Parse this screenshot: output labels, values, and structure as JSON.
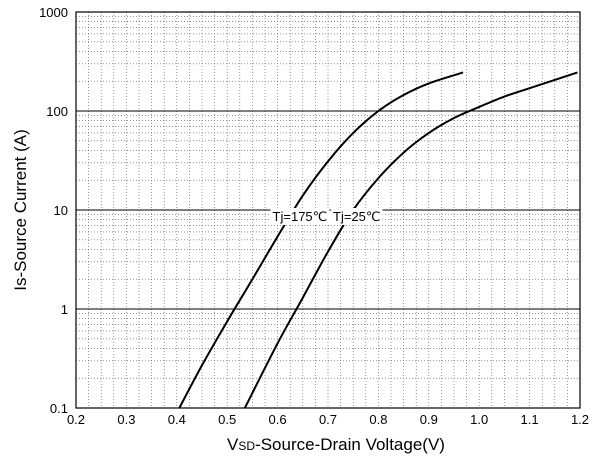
{
  "chart_data": {
    "type": "line",
    "title": "",
    "xlabel_main": "Vsd",
    "xlabel_sub": "SD",
    "xlabel_prefix": "V",
    "xlabel_rest": "-Source-Drain Voltage(V)",
    "ylabel": "Is-Source Current (A)",
    "x_scale": "linear",
    "y_scale": "log",
    "xlim": [
      0.2,
      1.2
    ],
    "ylim": [
      0.1,
      1000
    ],
    "x_ticks": [
      0.2,
      0.3,
      0.4,
      0.5,
      0.6,
      0.7,
      0.8,
      0.9,
      1.0,
      1.1,
      1.2
    ],
    "x_tick_labels": [
      "0.2",
      "0.3",
      "0.4",
      "0.5",
      "0.6",
      "0.7",
      "0.8",
      "0.9",
      "1.0",
      "1.1",
      "1.2"
    ],
    "y_ticks": [
      0.1,
      1,
      10,
      100,
      1000
    ],
    "y_tick_labels": [
      "0.1",
      "1",
      "10",
      "100",
      "1000"
    ],
    "grid": "major solid on decades, minor dotted",
    "series": [
      {
        "name": "Tj=175℃",
        "color": "#000000",
        "x": [
          0.405,
          0.45,
          0.5,
          0.55,
          0.6,
          0.65,
          0.7,
          0.75,
          0.8,
          0.85,
          0.9,
          0.968
        ],
        "y": [
          0.1,
          0.27,
          0.75,
          2.0,
          5.4,
          14,
          31,
          60,
          100,
          145,
          190,
          245
        ]
      },
      {
        "name": "Tj=25℃",
        "color": "#000000",
        "x": [
          0.535,
          0.6,
          0.65,
          0.7,
          0.75,
          0.8,
          0.85,
          0.9,
          0.95,
          1.0,
          1.05,
          1.1,
          1.195
        ],
        "y": [
          0.1,
          0.45,
          1.3,
          3.8,
          10,
          21,
          38,
          60,
          85,
          110,
          140,
          170,
          245
        ]
      }
    ],
    "annotations": [
      {
        "text": "Tj=175℃",
        "x": 0.59,
        "y": 8.5
      },
      {
        "text": "Tj=25℃",
        "x": 0.71,
        "y": 8.5
      }
    ]
  }
}
